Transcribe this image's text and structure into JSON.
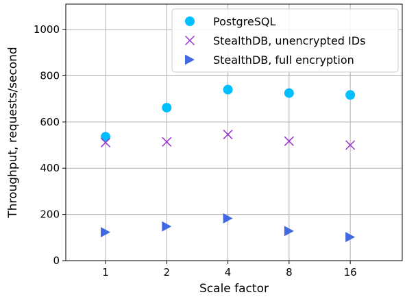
{
  "chart_data": {
    "type": "scatter",
    "x_categories": [
      "1",
      "2",
      "4",
      "8",
      "16"
    ],
    "xlabel": "Scale factor",
    "ylabel": "Throughput, requests/second",
    "ylim": [
      0,
      1110
    ],
    "yticks": [
      0,
      200,
      400,
      600,
      800,
      1000
    ],
    "grid": true,
    "legend_position": "top-right",
    "series": [
      {
        "name": "PostgreSQL",
        "marker": "circle",
        "color": "#00bfff",
        "values": [
          536,
          662,
          740,
          725,
          717
        ]
      },
      {
        "name": "StealthDB, unencrypted IDs",
        "marker": "x",
        "color": "#9932cc",
        "values": [
          511,
          514,
          546,
          517,
          500
        ]
      },
      {
        "name": "StealthDB, full encryption",
        "marker": "triangle-right",
        "color": "#4169e1",
        "values": [
          123,
          148,
          183,
          128,
          102
        ]
      }
    ]
  }
}
